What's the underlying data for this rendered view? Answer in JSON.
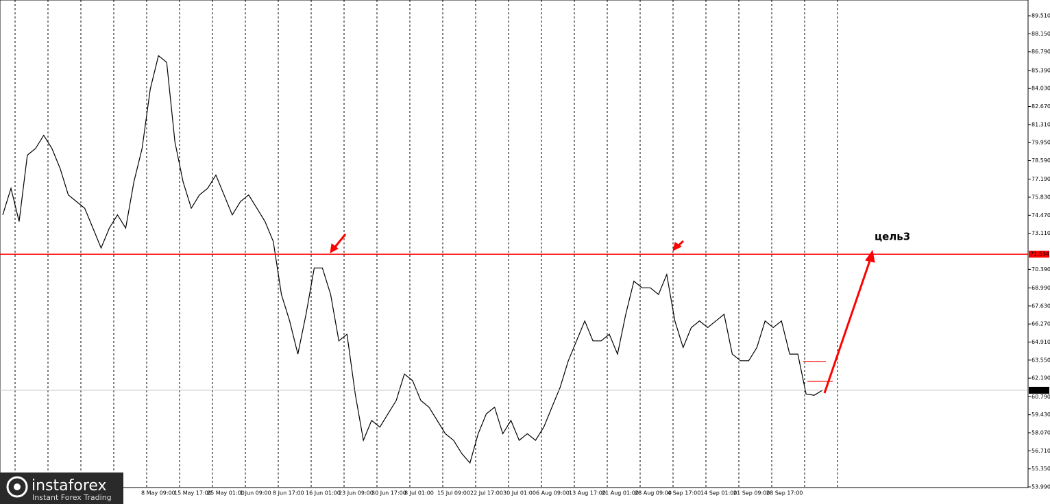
{
  "chart_data": {
    "type": "line",
    "values": [
      74.5,
      76.5,
      74.0,
      79.0,
      79.5,
      80.5,
      79.5,
      78.0,
      76.0,
      75.5,
      75.0,
      73.5,
      72.0,
      73.5,
      74.5,
      73.5,
      77.0,
      79.5,
      84.0,
      86.5,
      86.0,
      80.0,
      77.0,
      75.0,
      76.0,
      76.5,
      77.5,
      76.0,
      74.5,
      75.5,
      76.0,
      75.0,
      74.0,
      72.5,
      68.5,
      66.5,
      64.0,
      67.0,
      70.5,
      70.5,
      68.5,
      65.0,
      65.5,
      61.0,
      57.5,
      59.0,
      58.5,
      59.5,
      60.5,
      62.5,
      62.0,
      60.5,
      60.0,
      59.0,
      58.0,
      57.5,
      56.5,
      55.8,
      58.0,
      59.5,
      60.0,
      58.0,
      59.0,
      57.5,
      58.0,
      57.5,
      58.5,
      60.0,
      61.5,
      63.5,
      65.0,
      66.5,
      65.0,
      65.0,
      65.5,
      64.0,
      67.0,
      69.5,
      69.0,
      69.0,
      68.5,
      70.0,
      66.5,
      64.5,
      66.0,
      66.5,
      66.0,
      66.5,
      67.0,
      64.0,
      63.5,
      63.5,
      64.5,
      66.5,
      66.0,
      66.5,
      64.0,
      64.0,
      61.0,
      60.9,
      61.275
    ],
    "color": "#000000",
    "ylim": [
      53.94,
      90.7
    ],
    "yticks": [
      {
        "value": 53.99,
        "label": "53.990"
      },
      {
        "value": 55.35,
        "label": "55.350"
      },
      {
        "value": 56.71,
        "label": "56.710"
      },
      {
        "value": 58.07,
        "label": "58.070"
      },
      {
        "value": 59.43,
        "label": "59.430"
      },
      {
        "value": 60.79,
        "label": "60.790"
      },
      {
        "value": 62.19,
        "label": "62.190"
      },
      {
        "value": 63.55,
        "label": "63.550"
      },
      {
        "value": 64.91,
        "label": "64.910"
      },
      {
        "value": 66.27,
        "label": "66.270"
      },
      {
        "value": 67.63,
        "label": "67.630"
      },
      {
        "value": 68.99,
        "label": "68.990"
      },
      {
        "value": 70.39,
        "label": "70.390"
      },
      {
        "value": 73.11,
        "label": "73.110"
      },
      {
        "value": 74.47,
        "label": "74.470"
      },
      {
        "value": 75.83,
        "label": "75.830"
      },
      {
        "value": 77.19,
        "label": "77.190"
      },
      {
        "value": 78.59,
        "label": "78.590"
      },
      {
        "value": 79.95,
        "label": "79.950"
      },
      {
        "value": 81.31,
        "label": "81.310"
      },
      {
        "value": 82.67,
        "label": "82.670"
      },
      {
        "value": 84.03,
        "label": "84.030"
      },
      {
        "value": 85.39,
        "label": "85.390"
      },
      {
        "value": 86.79,
        "label": "86.790"
      },
      {
        "value": 88.15,
        "label": "88.150"
      },
      {
        "value": 89.51,
        "label": "89.510"
      }
    ],
    "xtick_labels": [
      "8 May 09:00",
      "15 May 17:00",
      "25 May 01:00",
      "1 Jun 09:00",
      "8 Jun 17:00",
      "16 Jun 01:00",
      "23 Jun 09:00",
      "30 Jun 17:00",
      "8 Jul 01:00",
      "15 Jul 09:00",
      "22 Jul 17:00",
      "30 Jul 01:00",
      "6 Aug 09:00",
      "13 Aug 17:00",
      "21 Aug 01:00",
      "28 Aug 09:00",
      "4 Sep 17:00",
      "14 Sep 01:00",
      "21 Sep 09:00",
      "28 Sep 17:00"
    ],
    "resistance": {
      "value": 71.534,
      "label": "71.534",
      "color": "#ff0000"
    },
    "current": {
      "value": 61.275,
      "label": "61.275",
      "color": "#c0c0c0"
    },
    "levels": [
      63.45,
      61.95
    ],
    "annotation": "цель3",
    "logo": {
      "name": "instaforex",
      "tagline": "Instant Forex Trading"
    }
  }
}
